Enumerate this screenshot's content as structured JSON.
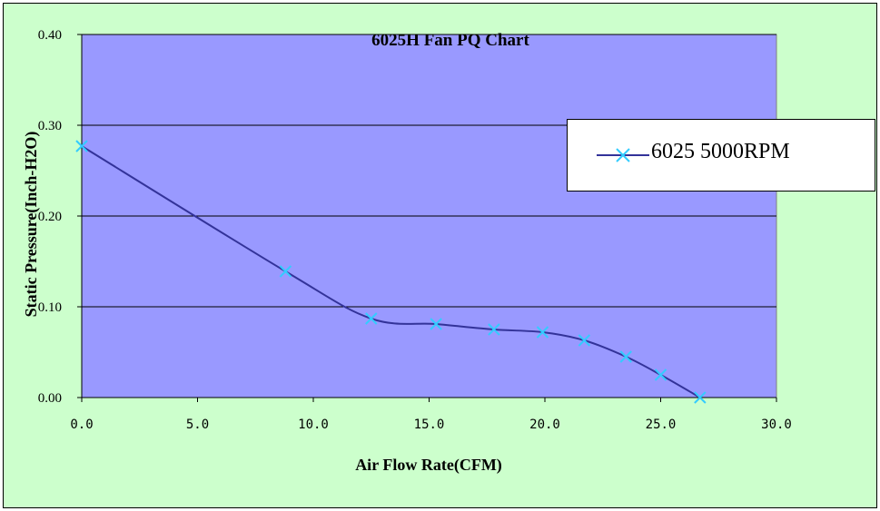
{
  "chart_data": {
    "type": "line",
    "title": "6025H  Fan PQ Chart",
    "xlabel": "Air Flow Rate(CFM)",
    "ylabel": "Static Pressure(Inch-H2O)",
    "xlim": [
      0,
      30
    ],
    "ylim": [
      0,
      0.4
    ],
    "x_ticks": [
      "0.0",
      "5.0",
      "10.0",
      "15.0",
      "20.0",
      "25.0",
      "30.0"
    ],
    "y_ticks": [
      "0.00",
      "0.10",
      "0.20",
      "0.30",
      "0.40"
    ],
    "grid": "horizontal",
    "legend_position": "right",
    "series": [
      {
        "name": "6025 5000RPM",
        "line_color": "#333399",
        "marker_color": "#33ccff",
        "marker": "x",
        "points": [
          {
            "x": 0.0,
            "y": 0.277
          },
          {
            "x": 8.8,
            "y": 0.139
          },
          {
            "x": 12.5,
            "y": 0.087
          },
          {
            "x": 15.3,
            "y": 0.081
          },
          {
            "x": 17.8,
            "y": 0.075
          },
          {
            "x": 19.9,
            "y": 0.072
          },
          {
            "x": 21.7,
            "y": 0.063
          },
          {
            "x": 23.5,
            "y": 0.045
          },
          {
            "x": 25.0,
            "y": 0.025
          },
          {
            "x": 26.7,
            "y": 0.0
          }
        ]
      }
    ],
    "colors": {
      "chart_background": "#ccffcc",
      "plot_background": "#9999ff",
      "gridline": "#000000"
    }
  }
}
